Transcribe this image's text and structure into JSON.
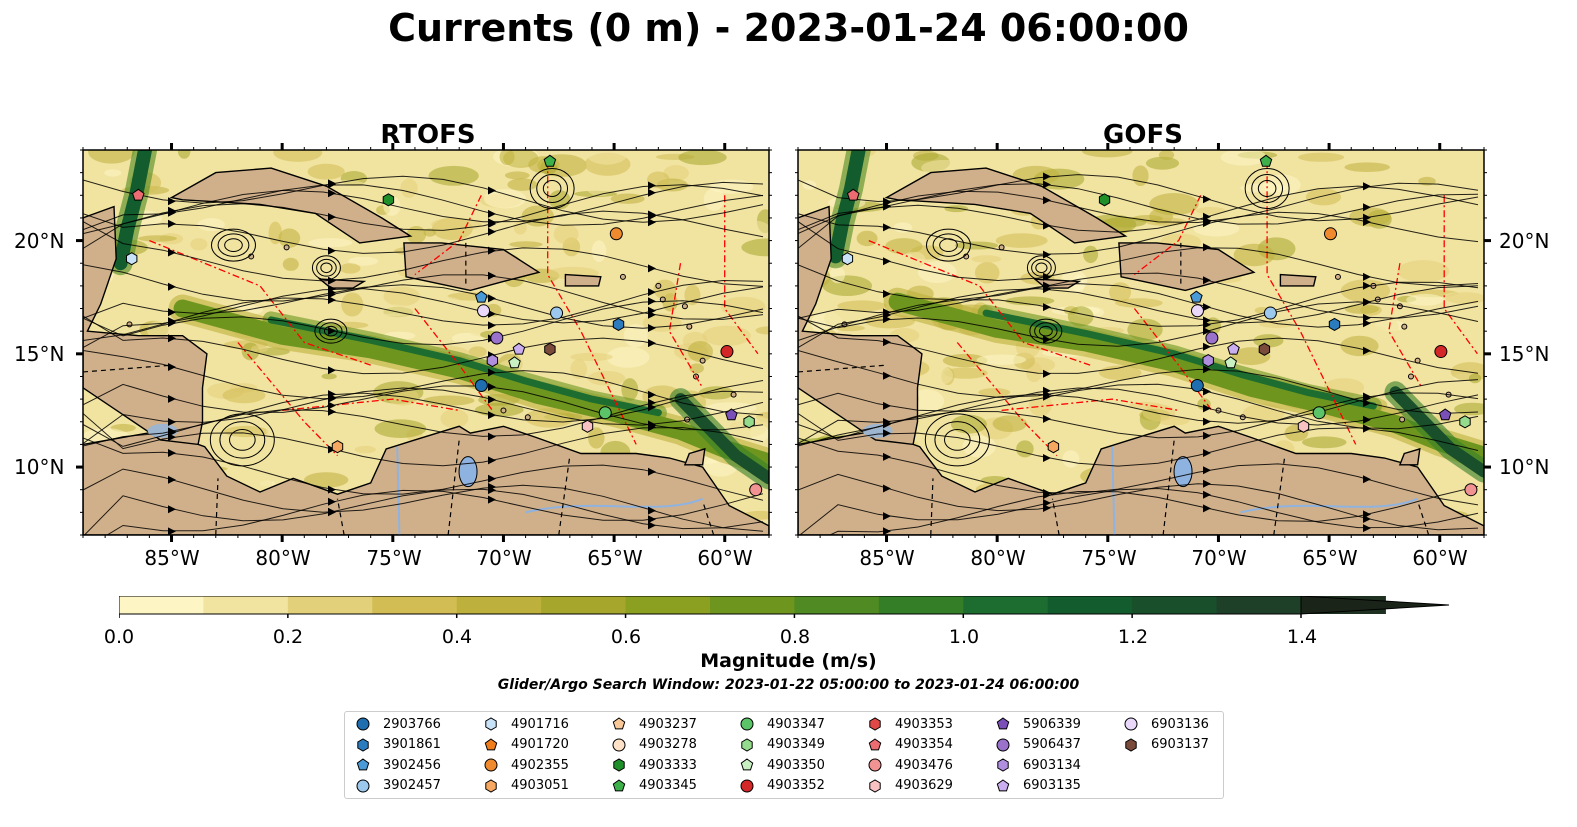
{
  "title": "Currents (0 m) - 2023-01-24 06:00:00",
  "panels": [
    {
      "title": "RTOFS"
    },
    {
      "title": "GOFS"
    }
  ],
  "axes": {
    "xticks": [
      "85°W",
      "80°W",
      "75°W",
      "70°W",
      "65°W",
      "60°W"
    ],
    "yticks": [
      "20°N",
      "15°N",
      "10°N"
    ]
  },
  "colorbar": {
    "label": "Magnitude (m/s)",
    "ticks": [
      "0.0",
      "0.2",
      "0.4",
      "0.6",
      "0.8",
      "1.0",
      "1.2",
      "1.4"
    ],
    "colors": [
      "#fdf5c4",
      "#f1e3a0",
      "#e3d07a",
      "#d2bd55",
      "#bdb03c",
      "#a6a62c",
      "#8ba020",
      "#6e961f",
      "#4f8a22",
      "#357e28",
      "#1d6d30",
      "#135c2d",
      "#194f2b",
      "#1f4028",
      "#1e3121",
      "#1b2419"
    ]
  },
  "search_window": "Glider/Argo Search Window: 2023-01-22 05:00:00 to 2023-01-24 06:00:00",
  "legend": [
    {
      "id": "2903766",
      "marker": "circle",
      "color": "#1f6fb0"
    },
    {
      "id": "3901861",
      "marker": "hexagon",
      "color": "#2b7bbf"
    },
    {
      "id": "3902456",
      "marker": "pentagon",
      "color": "#4a9ad8"
    },
    {
      "id": "3902457",
      "marker": "circle",
      "color": "#9cc8ee"
    },
    {
      "id": "4901716",
      "marker": "hexagon",
      "color": "#c8e3f7"
    },
    {
      "id": "4901720",
      "marker": "pentagon",
      "color": "#f07d1a"
    },
    {
      "id": "4902355",
      "marker": "circle",
      "color": "#f08a2f"
    },
    {
      "id": "4903051",
      "marker": "hexagon",
      "color": "#f6a860"
    },
    {
      "id": "4903237",
      "marker": "pentagon",
      "color": "#f9c899"
    },
    {
      "id": "4903278",
      "marker": "circle",
      "color": "#fde2c8"
    },
    {
      "id": "4903333",
      "marker": "hexagon",
      "color": "#1f8f2a"
    },
    {
      "id": "4903345",
      "marker": "pentagon",
      "color": "#3db04a"
    },
    {
      "id": "4903347",
      "marker": "circle",
      "color": "#5cc468"
    },
    {
      "id": "4903349",
      "marker": "hexagon",
      "color": "#94db8e"
    },
    {
      "id": "4903350",
      "marker": "pentagon",
      "color": "#c9f0c2"
    },
    {
      "id": "4903352",
      "marker": "circle",
      "color": "#d42727"
    },
    {
      "id": "4903353",
      "marker": "hexagon",
      "color": "#e04848"
    },
    {
      "id": "4903354",
      "marker": "pentagon",
      "color": "#ec6c72"
    },
    {
      "id": "4903476",
      "marker": "circle",
      "color": "#f29393"
    },
    {
      "id": "4903629",
      "marker": "hexagon",
      "color": "#f9c2c2"
    },
    {
      "id": "5906339",
      "marker": "pentagon",
      "color": "#7b4fb8"
    },
    {
      "id": "5906437",
      "marker": "circle",
      "color": "#9a72cc"
    },
    {
      "id": "6903134",
      "marker": "hexagon",
      "color": "#b08ee0"
    },
    {
      "id": "6903135",
      "marker": "pentagon",
      "color": "#caaeef"
    },
    {
      "id": "6903136",
      "marker": "circle",
      "color": "#ead8fb"
    },
    {
      "id": "6903137",
      "marker": "hexagon",
      "color": "#7a4a3a"
    }
  ],
  "chart_data": {
    "type": "map",
    "projection": "plate-carree",
    "lon_range": [
      -89,
      -58
    ],
    "lat_range": [
      7,
      24
    ],
    "variable": "surface current magnitude with streamlines",
    "units": "m/s",
    "color_range": [
      0,
      1.6
    ],
    "land_color": "#d0b08a",
    "panels": [
      "RTOFS",
      "GOFS"
    ],
    "glider_argo_positions": [
      {
        "id": "4903354",
        "lon": -86.5,
        "lat": 22.0
      },
      {
        "id": "4901716",
        "lon": -86.8,
        "lat": 19.2
      },
      {
        "id": "4903333",
        "lon": -75.2,
        "lat": 21.8
      },
      {
        "id": "4903345",
        "lon": -67.9,
        "lat": 23.5
      },
      {
        "id": "4902355",
        "lon": -64.9,
        "lat": 20.3
      },
      {
        "id": "3902456",
        "lon": -71.0,
        "lat": 17.5
      },
      {
        "id": "6903136",
        "lon": -70.9,
        "lat": 16.9
      },
      {
        "id": "3902457",
        "lon": -67.6,
        "lat": 16.8
      },
      {
        "id": "3901861",
        "lon": -64.8,
        "lat": 16.3
      },
      {
        "id": "5906437",
        "lon": -70.3,
        "lat": 15.7
      },
      {
        "id": "6903135",
        "lon": -69.3,
        "lat": 15.2
      },
      {
        "id": "6903137",
        "lon": -67.9,
        "lat": 15.2
      },
      {
        "id": "6903134",
        "lon": -70.5,
        "lat": 14.7
      },
      {
        "id": "4903350",
        "lon": -69.5,
        "lat": 14.6
      },
      {
        "id": "4903352",
        "lon": -59.9,
        "lat": 15.1
      },
      {
        "id": "2903766",
        "lon": -71.0,
        "lat": 13.6
      },
      {
        "id": "4903347",
        "lon": -65.4,
        "lat": 12.4
      },
      {
        "id": "4903629",
        "lon": -66.2,
        "lat": 11.8
      },
      {
        "id": "5906339",
        "lon": -59.7,
        "lat": 12.3
      },
      {
        "id": "4903349",
        "lon": -58.9,
        "lat": 12.0
      },
      {
        "id": "4903051",
        "lon": -77.5,
        "lat": 10.9
      },
      {
        "id": "4903476",
        "lon": -58.6,
        "lat": 9.0
      }
    ]
  }
}
